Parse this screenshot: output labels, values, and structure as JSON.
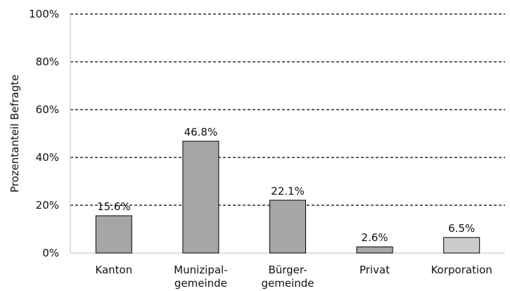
{
  "chart_data": {
    "type": "bar",
    "title": "",
    "xlabel": "",
    "ylabel": "Prozentanteil Befragte",
    "ylim": [
      0,
      100
    ],
    "yticks": [
      0,
      20,
      40,
      60,
      80,
      100
    ],
    "ytick_labels": [
      "0%",
      "20%",
      "40%",
      "60%",
      "80%",
      "100%"
    ],
    "grid": "horizontal dashed",
    "categories": [
      [
        "Kanton"
      ],
      [
        "Munizipal-",
        "gemeinde"
      ],
      [
        "Bürger-",
        "gemeinde"
      ],
      [
        "Privat"
      ],
      [
        "Korporation"
      ]
    ],
    "values": [
      15.6,
      46.8,
      22.1,
      2.6,
      6.5
    ],
    "data_labels": [
      "15.6%",
      "46.8%",
      "22.1%",
      "2.6%",
      "6.5%"
    ],
    "colors": {
      "bar": "#a6a6a6",
      "bar_last": "#cccccc",
      "bar_stroke": "#000000",
      "grid": "#000000",
      "axis": "#bfbfbf"
    }
  }
}
